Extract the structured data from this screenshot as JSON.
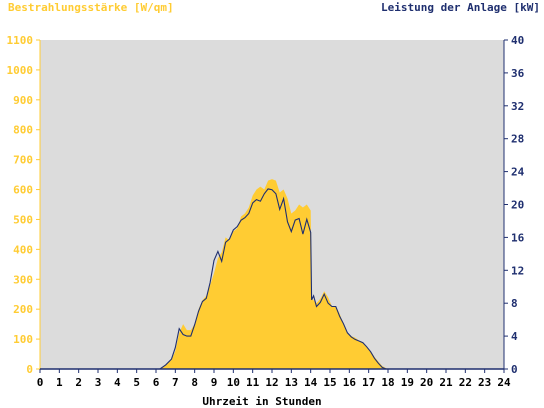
{
  "colors": {
    "irradiance": "#ffcc33",
    "power": "#1f2f6f",
    "plot_bg": "#dcdcdc",
    "x_axis": "#1f2f6f",
    "tick_x": "#000000"
  },
  "chart_data": {
    "type": "area",
    "left_title": "Bestrahlungsstärke [W/qm]",
    "right_title": "Leistung der Anlage [kW]",
    "xlabel": "Uhrzeit in Stunden",
    "xlim": [
      0,
      24
    ],
    "x_ticks": [
      "0",
      "1",
      "2",
      "3",
      "4",
      "5",
      "6",
      "7",
      "8",
      "9",
      "10",
      "11",
      "12",
      "13",
      "14",
      "15",
      "16",
      "17",
      "18",
      "19",
      "20",
      "21",
      "22",
      "23",
      "24"
    ],
    "ylim_left": [
      0,
      1100
    ],
    "y_left_ticks": [
      "0",
      "100",
      "200",
      "300",
      "400",
      "500",
      "600",
      "700",
      "800",
      "900",
      "1000",
      "1100"
    ],
    "ylim_right": [
      0,
      40
    ],
    "y_right_ticks": [
      "0",
      "4",
      "8",
      "12",
      "16",
      "20",
      "24",
      "28",
      "32",
      "36",
      "40"
    ],
    "grid": false,
    "series": [
      {
        "axis": "left",
        "style": "filled-area",
        "x": [
          0,
          6.2,
          6.5,
          6.8,
          7.0,
          7.2,
          7.4,
          7.6,
          7.8,
          8.0,
          8.2,
          8.4,
          8.6,
          8.8,
          9.0,
          9.2,
          9.4,
          9.6,
          9.8,
          10.0,
          10.2,
          10.4,
          10.6,
          10.8,
          11.0,
          11.2,
          11.4,
          11.6,
          11.8,
          12.0,
          12.2,
          12.4,
          12.6,
          12.8,
          13.0,
          13.2,
          13.4,
          13.6,
          13.8,
          14.0,
          14.05,
          14.15,
          14.3,
          14.5,
          14.7,
          14.9,
          15.1,
          15.3,
          15.5,
          15.7,
          15.9,
          16.1,
          16.3,
          16.5,
          16.7,
          16.9,
          17.1,
          17.3,
          17.5,
          17.7,
          17.9,
          18.1,
          18.3,
          24
        ],
        "y": [
          0,
          0,
          15,
          30,
          60,
          120,
          150,
          130,
          130,
          150,
          200,
          230,
          245,
          280,
          320,
          370,
          390,
          440,
          430,
          460,
          470,
          510,
          520,
          540,
          580,
          600,
          610,
          600,
          630,
          635,
          630,
          590,
          600,
          570,
          520,
          530,
          550,
          540,
          550,
          530,
          240,
          230,
          220,
          235,
          260,
          240,
          210,
          210,
          185,
          150,
          120,
          110,
          105,
          95,
          90,
          75,
          60,
          40,
          25,
          10,
          3,
          0,
          0,
          0
        ]
      },
      {
        "axis": "right",
        "style": "line",
        "x": [
          0,
          6.2,
          6.5,
          6.8,
          7.0,
          7.2,
          7.4,
          7.6,
          7.8,
          8.0,
          8.2,
          8.4,
          8.6,
          8.8,
          9.0,
          9.2,
          9.4,
          9.6,
          9.8,
          10.0,
          10.2,
          10.4,
          10.6,
          10.8,
          11.0,
          11.2,
          11.4,
          11.6,
          11.8,
          12.0,
          12.2,
          12.4,
          12.6,
          12.8,
          13.0,
          13.2,
          13.4,
          13.6,
          13.8,
          14.0,
          14.05,
          14.15,
          14.3,
          14.5,
          14.7,
          14.9,
          15.1,
          15.3,
          15.5,
          15.7,
          15.9,
          16.1,
          16.3,
          16.5,
          16.7,
          16.9,
          17.1,
          17.3,
          17.5,
          17.7,
          17.9,
          18.1,
          18.3,
          24
        ],
        "y": [
          0,
          0,
          0.5,
          1.2,
          2.6,
          4.9,
          4.2,
          4.0,
          4.0,
          5.4,
          7.0,
          8.2,
          8.6,
          10.5,
          13.2,
          14.3,
          13.1,
          15.4,
          15.8,
          16.9,
          17.3,
          18.1,
          18.4,
          18.9,
          20.2,
          20.6,
          20.4,
          21.3,
          21.9,
          21.8,
          21.3,
          19.4,
          20.7,
          17.9,
          16.7,
          18.1,
          18.3,
          16.4,
          18.2,
          16.6,
          8.4,
          8.9,
          7.6,
          8.1,
          9.1,
          8.0,
          7.6,
          7.6,
          6.4,
          5.5,
          4.4,
          3.9,
          3.6,
          3.4,
          3.2,
          2.7,
          2.1,
          1.3,
          0.7,
          0.2,
          0,
          0,
          0,
          0
        ]
      }
    ]
  }
}
